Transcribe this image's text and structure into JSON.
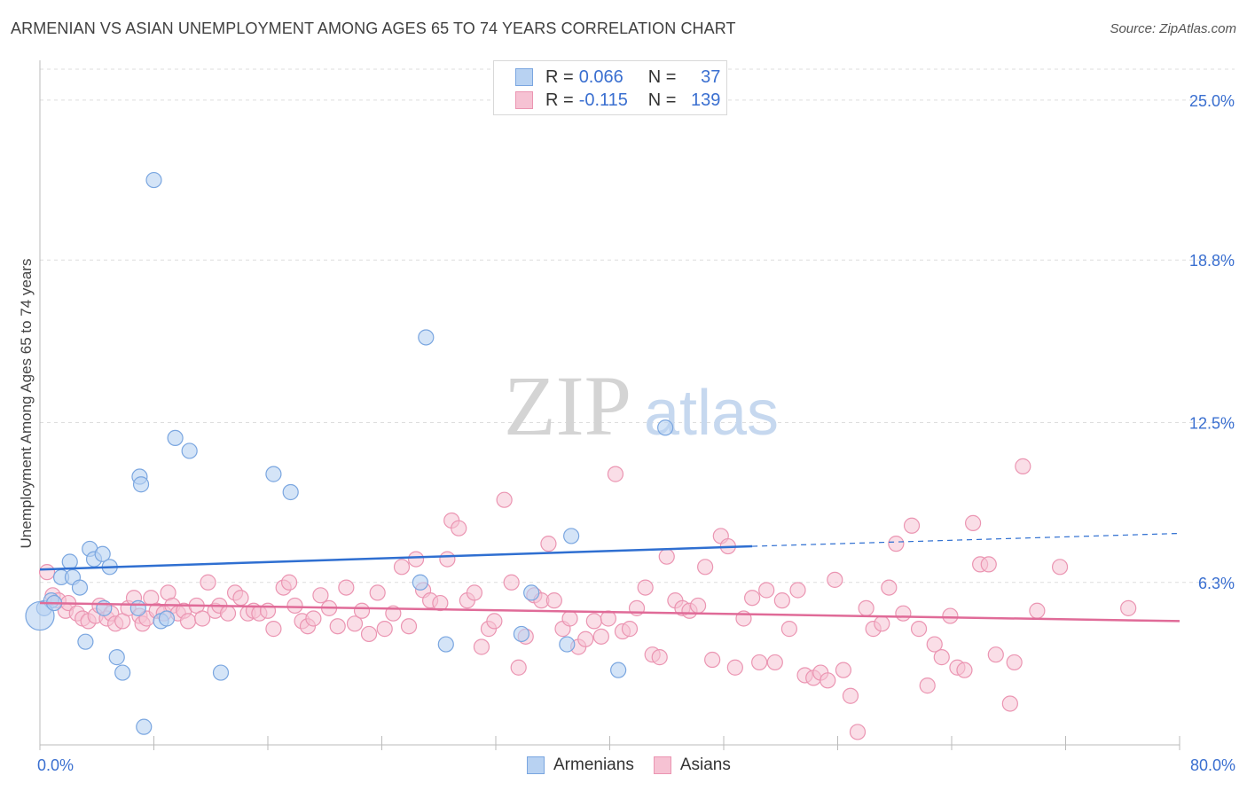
{
  "header": {
    "title": "ARMENIAN VS ASIAN UNEMPLOYMENT AMONG AGES 65 TO 74 YEARS CORRELATION CHART",
    "source": "Source: ZipAtlas.com"
  },
  "watermark": {
    "part1": "ZIP",
    "part2": "atlas"
  },
  "legend_top": {
    "rows": [
      {
        "r_label": "R =",
        "r_value": "0.066",
        "n_label": "N =",
        "n_value": "37"
      },
      {
        "r_label": "R =",
        "r_value": "-0.115",
        "n_label": "N =",
        "n_value": "139"
      }
    ]
  },
  "legend_bottom": {
    "items": [
      "Armenians",
      "Asians"
    ]
  },
  "colors": {
    "armenian_fill": "#b8d2f2",
    "armenian_stroke": "#7aa6e0",
    "armenian_line": "#2f6fd1",
    "asian_fill": "#f6c2d3",
    "asian_stroke": "#eb95b2",
    "asian_line": "#e06b98",
    "axis_text": "#3a6fd0",
    "grid": "#dedede"
  },
  "chart_data": {
    "type": "scatter",
    "title": "ARMENIAN VS ASIAN UNEMPLOYMENT AMONG AGES 65 TO 74 YEARS CORRELATION CHART",
    "xlabel": "",
    "ylabel": "Unemployment Among Ages 65 to 74 years",
    "xlim": [
      0,
      80
    ],
    "ylim": [
      0,
      26.2
    ],
    "x_tick_labels": [
      "0.0%",
      "80.0%"
    ],
    "y_ticks": [
      6.3,
      12.5,
      18.8,
      25.0
    ],
    "y_tick_labels": [
      "6.3%",
      "12.5%",
      "18.8%",
      "25.0%"
    ],
    "grid": true,
    "legend_position": "bottom-center",
    "series": [
      {
        "name": "Armenians",
        "R": 0.066,
        "N": 37,
        "trend": {
          "x0": 0,
          "y0": 6.8,
          "x1": 50,
          "y1": 7.7,
          "dash_x1": 80,
          "dash_y1": 8.2
        },
        "points": [
          [
            0.3,
            5.3
          ],
          [
            0.8,
            5.6
          ],
          [
            1.5,
            6.5
          ],
          [
            2.1,
            7.1
          ],
          [
            2.3,
            6.5
          ],
          [
            2.8,
            6.1
          ],
          [
            3.2,
            4.0
          ],
          [
            3.5,
            7.6
          ],
          [
            3.8,
            7.2
          ],
          [
            4.4,
            7.4
          ],
          [
            4.5,
            5.3
          ],
          [
            4.9,
            6.9
          ],
          [
            5.4,
            3.4
          ],
          [
            5.8,
            2.8
          ],
          [
            6.9,
            5.3
          ],
          [
            7.0,
            10.4
          ],
          [
            7.1,
            10.1
          ],
          [
            7.3,
            0.7
          ],
          [
            8.0,
            21.9
          ],
          [
            8.5,
            4.8
          ],
          [
            8.9,
            4.9
          ],
          [
            9.5,
            11.9
          ],
          [
            10.5,
            11.4
          ],
          [
            12.7,
            2.8
          ],
          [
            16.4,
            10.5
          ],
          [
            17.6,
            9.8
          ],
          [
            26.7,
            6.3
          ],
          [
            27.1,
            15.8
          ],
          [
            28.5,
            3.9
          ],
          [
            33.8,
            4.3
          ],
          [
            34.5,
            5.9
          ],
          [
            37.0,
            3.9
          ],
          [
            37.3,
            8.1
          ],
          [
            40.6,
            2.9
          ],
          [
            43.9,
            12.3
          ],
          [
            0.0,
            5.0
          ],
          [
            1.0,
            5.5
          ]
        ]
      },
      {
        "name": "Asians",
        "R": -0.115,
        "N": 139,
        "trend": {
          "x0": 0,
          "y0": 5.5,
          "x1": 80,
          "y1": 4.8
        },
        "points": [
          [
            0.5,
            6.7
          ],
          [
            0.9,
            5.8
          ],
          [
            1.3,
            5.6
          ],
          [
            1.8,
            5.2
          ],
          [
            2.0,
            5.5
          ],
          [
            2.6,
            5.1
          ],
          [
            3.0,
            4.9
          ],
          [
            3.4,
            4.8
          ],
          [
            3.9,
            5.0
          ],
          [
            4.2,
            5.4
          ],
          [
            4.7,
            4.9
          ],
          [
            5.0,
            5.1
          ],
          [
            5.3,
            4.7
          ],
          [
            5.8,
            4.8
          ],
          [
            6.2,
            5.3
          ],
          [
            6.6,
            5.7
          ],
          [
            7.0,
            5.0
          ],
          [
            7.2,
            4.7
          ],
          [
            7.5,
            4.9
          ],
          [
            7.8,
            5.7
          ],
          [
            8.2,
            5.2
          ],
          [
            8.7,
            5.1
          ],
          [
            9.0,
            5.9
          ],
          [
            9.3,
            5.4
          ],
          [
            9.7,
            5.1
          ],
          [
            10.1,
            5.2
          ],
          [
            10.4,
            4.8
          ],
          [
            11.0,
            5.4
          ],
          [
            11.4,
            4.9
          ],
          [
            11.8,
            6.3
          ],
          [
            12.3,
            5.2
          ],
          [
            12.6,
            5.4
          ],
          [
            13.2,
            5.1
          ],
          [
            13.7,
            5.9
          ],
          [
            14.1,
            5.7
          ],
          [
            14.6,
            5.1
          ],
          [
            15.0,
            5.2
          ],
          [
            15.4,
            5.1
          ],
          [
            16.0,
            5.2
          ],
          [
            16.4,
            4.5
          ],
          [
            17.1,
            6.1
          ],
          [
            17.5,
            6.3
          ],
          [
            17.9,
            5.4
          ],
          [
            18.4,
            4.8
          ],
          [
            18.8,
            4.6
          ],
          [
            19.2,
            4.9
          ],
          [
            19.7,
            5.8
          ],
          [
            20.3,
            5.3
          ],
          [
            20.9,
            4.6
          ],
          [
            21.5,
            6.1
          ],
          [
            22.1,
            4.7
          ],
          [
            22.6,
            5.2
          ],
          [
            23.1,
            4.3
          ],
          [
            23.7,
            5.9
          ],
          [
            24.2,
            4.5
          ],
          [
            24.8,
            5.1
          ],
          [
            25.4,
            6.9
          ],
          [
            25.9,
            4.6
          ],
          [
            26.4,
            7.2
          ],
          [
            26.9,
            6.0
          ],
          [
            27.4,
            5.6
          ],
          [
            28.1,
            5.5
          ],
          [
            28.6,
            7.2
          ],
          [
            28.9,
            8.7
          ],
          [
            29.4,
            8.4
          ],
          [
            30.0,
            5.6
          ],
          [
            30.5,
            5.9
          ],
          [
            31.0,
            3.8
          ],
          [
            31.5,
            4.5
          ],
          [
            31.9,
            4.8
          ],
          [
            32.6,
            9.5
          ],
          [
            33.1,
            6.3
          ],
          [
            33.6,
            3.0
          ],
          [
            34.1,
            4.2
          ],
          [
            34.7,
            5.8
          ],
          [
            35.2,
            5.6
          ],
          [
            35.7,
            7.8
          ],
          [
            36.1,
            5.6
          ],
          [
            36.7,
            4.5
          ],
          [
            37.2,
            4.9
          ],
          [
            37.8,
            3.8
          ],
          [
            38.3,
            4.1
          ],
          [
            38.9,
            4.8
          ],
          [
            39.4,
            4.2
          ],
          [
            39.9,
            4.9
          ],
          [
            40.4,
            10.5
          ],
          [
            40.9,
            4.4
          ],
          [
            41.4,
            4.5
          ],
          [
            41.9,
            5.3
          ],
          [
            42.5,
            6.1
          ],
          [
            43.0,
            3.5
          ],
          [
            43.5,
            3.4
          ],
          [
            44.0,
            7.3
          ],
          [
            44.6,
            5.6
          ],
          [
            45.1,
            5.3
          ],
          [
            45.6,
            5.2
          ],
          [
            46.2,
            5.4
          ],
          [
            46.7,
            6.9
          ],
          [
            47.2,
            3.3
          ],
          [
            47.8,
            8.1
          ],
          [
            48.3,
            7.7
          ],
          [
            48.8,
            3.0
          ],
          [
            49.4,
            4.9
          ],
          [
            50.0,
            5.7
          ],
          [
            50.5,
            3.2
          ],
          [
            51.0,
            6.0
          ],
          [
            51.6,
            3.2
          ],
          [
            52.1,
            5.6
          ],
          [
            52.6,
            4.5
          ],
          [
            53.2,
            6.0
          ],
          [
            53.7,
            2.7
          ],
          [
            54.3,
            2.6
          ],
          [
            54.8,
            2.8
          ],
          [
            55.3,
            2.5
          ],
          [
            55.8,
            6.4
          ],
          [
            56.4,
            2.9
          ],
          [
            56.9,
            1.9
          ],
          [
            57.4,
            0.5
          ],
          [
            58.0,
            5.3
          ],
          [
            58.5,
            4.5
          ],
          [
            59.1,
            4.7
          ],
          [
            59.6,
            6.1
          ],
          [
            60.1,
            7.8
          ],
          [
            60.6,
            5.1
          ],
          [
            61.2,
            8.5
          ],
          [
            61.7,
            4.5
          ],
          [
            62.3,
            2.3
          ],
          [
            62.8,
            3.9
          ],
          [
            63.3,
            3.4
          ],
          [
            63.9,
            5.0
          ],
          [
            64.4,
            3.0
          ],
          [
            64.9,
            2.9
          ],
          [
            65.5,
            8.6
          ],
          [
            66.0,
            7.0
          ],
          [
            66.6,
            7.0
          ],
          [
            67.1,
            3.5
          ],
          [
            68.1,
            1.6
          ],
          [
            68.4,
            3.2
          ],
          [
            69.0,
            10.8
          ],
          [
            70.0,
            5.2
          ],
          [
            71.6,
            6.9
          ],
          [
            76.4,
            5.3
          ]
        ]
      }
    ]
  }
}
